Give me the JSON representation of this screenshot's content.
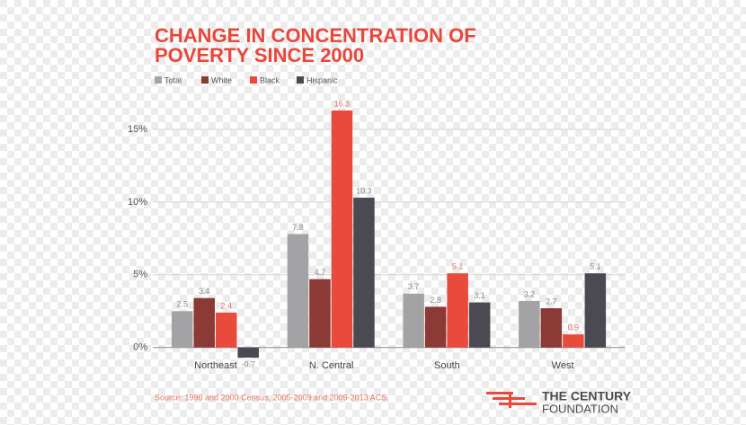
{
  "chart_data": {
    "type": "bar",
    "title": [
      "CHANGE IN CONCENTRATION OF",
      "POVERTY SINCE 2000"
    ],
    "categories": [
      "Northeast",
      "N. Central",
      "South",
      "West"
    ],
    "series": [
      {
        "name": "Total",
        "color": "#a3a3a6",
        "values": [
          2.5,
          7.8,
          3.7,
          3.2
        ]
      },
      {
        "name": "White",
        "color": "#8b3a35",
        "values": [
          3.4,
          4.7,
          2.8,
          2.7
        ]
      },
      {
        "name": "Black",
        "color": "#e84b3c",
        "values": [
          2.4,
          16.3,
          5.1,
          0.9
        ]
      },
      {
        "name": "Hispanic",
        "color": "#4a4a52",
        "values": [
          -0.7,
          10.3,
          3.1,
          5.1
        ]
      }
    ],
    "ylim": [
      -1.5,
      17
    ],
    "yticks": [
      {
        "value": 0,
        "label": "0%"
      },
      {
        "value": 5,
        "label": "5%"
      },
      {
        "value": 10,
        "label": "10%"
      },
      {
        "value": 15,
        "label": "15%"
      }
    ],
    "grid": true,
    "source": "Source: 1990 and 2000 Census, 2005-2009 and 2009-2013 ACS.",
    "brand": [
      "THE CENTURY",
      "FOUNDATION"
    ]
  }
}
